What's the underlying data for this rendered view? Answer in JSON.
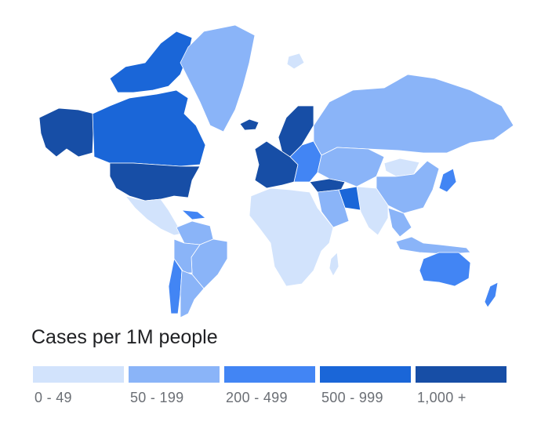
{
  "legend": {
    "title": "Cases per 1M people",
    "bins": [
      {
        "label": "0 - 49",
        "color": "#d2e3fc"
      },
      {
        "label": "50 - 199",
        "color": "#8ab4f8"
      },
      {
        "label": "200 - 499",
        "color": "#4285f4"
      },
      {
        "label": "500 - 999",
        "color": "#1a66d8"
      },
      {
        "label": "1,000 +",
        "color": "#174ea6"
      }
    ]
  },
  "regions": [
    {
      "name": "alaska",
      "bin": 4
    },
    {
      "name": "canada",
      "bin": 3
    },
    {
      "name": "canadian-arctic",
      "bin": 3
    },
    {
      "name": "usa",
      "bin": 4
    },
    {
      "name": "greenland",
      "bin": 1
    },
    {
      "name": "iceland",
      "bin": 4
    },
    {
      "name": "mexico-central-america",
      "bin": 0
    },
    {
      "name": "caribbean",
      "bin": 2
    },
    {
      "name": "colombia-venezuela",
      "bin": 1
    },
    {
      "name": "brazil",
      "bin": 1
    },
    {
      "name": "peru-bolivia",
      "bin": 1
    },
    {
      "name": "chile",
      "bin": 2
    },
    {
      "name": "argentina",
      "bin": 1
    },
    {
      "name": "western-europe",
      "bin": 4
    },
    {
      "name": "scandinavia",
      "bin": 4
    },
    {
      "name": "eastern-europe",
      "bin": 2
    },
    {
      "name": "turkey",
      "bin": 4
    },
    {
      "name": "iran",
      "bin": 3
    },
    {
      "name": "middle-east",
      "bin": 1
    },
    {
      "name": "russia",
      "bin": 1
    },
    {
      "name": "kazakhstan-central-asia",
      "bin": 1
    },
    {
      "name": "mongolia",
      "bin": 0
    },
    {
      "name": "china",
      "bin": 1
    },
    {
      "name": "india-south-asia",
      "bin": 0
    },
    {
      "name": "southeast-asia",
      "bin": 1
    },
    {
      "name": "indonesia",
      "bin": 1
    },
    {
      "name": "japan",
      "bin": 2
    },
    {
      "name": "africa",
      "bin": 0
    },
    {
      "name": "madagascar",
      "bin": 0
    },
    {
      "name": "australia",
      "bin": 2
    },
    {
      "name": "new-zealand",
      "bin": 2
    },
    {
      "name": "svalbard",
      "bin": 0
    }
  ]
}
